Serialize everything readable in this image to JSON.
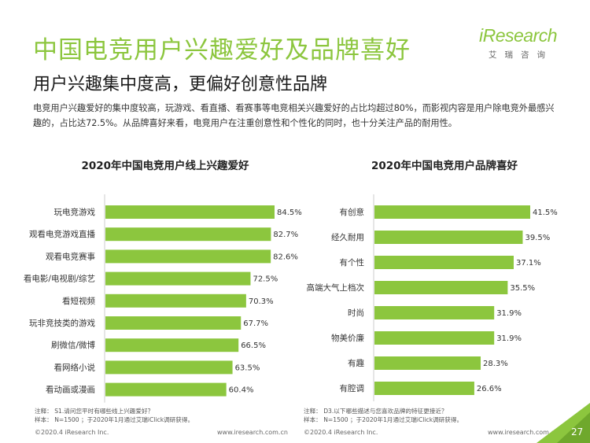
{
  "header": {
    "title": "中国电竞用户兴趣爱好及品牌喜好",
    "subtitle": "用户兴趣集中度高，更偏好创意性品牌",
    "description": "电竞用户兴趣爱好的集中度较高，玩游戏、看直播、看赛事等电竞相关兴趣爱好的占比均超过80%，而影视内容是用户除电竞外最感兴趣的，占比达72.5%。从品牌喜好来看，电竞用户在注重创意性和个性化的同时，也十分关注产品的耐用性。"
  },
  "logo": {
    "name": "iResearch",
    "sub": "艾瑞咨询"
  },
  "colors": {
    "accent": "#8cc63e",
    "bar": "#8cc63e"
  },
  "chart_data": [
    {
      "type": "bar",
      "orientation": "horizontal",
      "title": "2020年中国电竞用户线上兴趣爱好",
      "categories": [
        "玩电竞游戏",
        "观看电竞游戏直播",
        "观看电竞赛事",
        "看电影/电视剧/综艺",
        "看短视频",
        "玩非竞技类的游戏",
        "刷微信/微博",
        "看网络小说",
        "看动画或漫画"
      ],
      "values": [
        84.5,
        82.7,
        82.6,
        72.5,
        70.3,
        67.7,
        66.5,
        63.5,
        60.4
      ],
      "value_format": "%",
      "xlim": [
        0,
        100
      ]
    },
    {
      "type": "bar",
      "orientation": "horizontal",
      "title": "2020年中国电竞用户品牌喜好",
      "categories": [
        "有创意",
        "经久耐用",
        "有个性",
        "高端大气上档次",
        "时尚",
        "物美价廉",
        "有趣",
        "有腔调"
      ],
      "values": [
        41.5,
        39.5,
        37.1,
        35.5,
        31.9,
        31.9,
        28.3,
        26.6
      ],
      "value_format": "%",
      "xlim": [
        0,
        50
      ]
    }
  ],
  "notes": {
    "left": [
      "注释：  S1.请问您平时有哪些线上兴趣爱好？",
      "样本：  N=1500 ；于2020年1月通过艾瑞iClick调研获得。"
    ],
    "right": [
      "注释：  D3.以下哪些描述与您喜欢品牌的特征更接近？",
      "样本：  N=1500 ；于2020年1月通过艾瑞iClick调研获得。"
    ]
  },
  "footer": {
    "copyright": "©2020.4 iResearch Inc.",
    "url": "www.iresearch.com.cn",
    "page": "27"
  }
}
